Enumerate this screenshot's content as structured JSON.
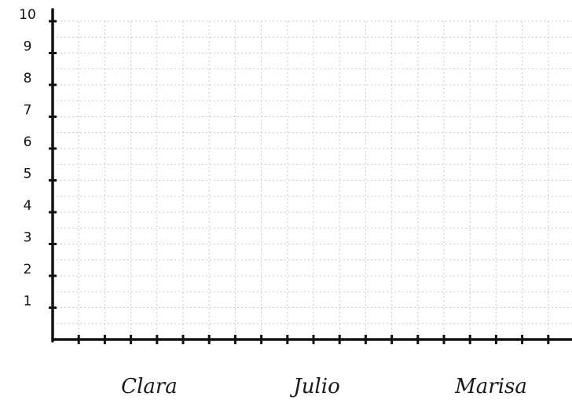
{
  "chart_data": {
    "type": "bar",
    "title": "",
    "xlabel": "",
    "ylabel": "",
    "categories": [
      "Clara",
      "Julio",
      "Marisa"
    ],
    "values": [
      null,
      null,
      null
    ],
    "y_ticks": [
      "1",
      "2",
      "3",
      "4",
      "5",
      "6",
      "7",
      "8",
      "9",
      "10"
    ],
    "ylim": [
      0,
      10
    ],
    "grid": true,
    "grid_style": "dotted"
  },
  "colors": {
    "axis": "#111111",
    "grid": "#c8c8c8"
  }
}
